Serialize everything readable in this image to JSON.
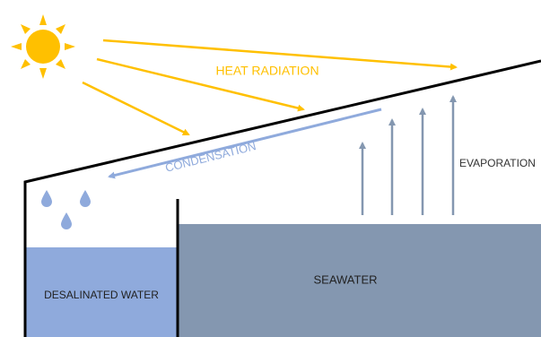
{
  "labels": {
    "heat_radiation": "HEAT RADIATION",
    "condensation": "CONDENSATION",
    "evaporation": "EVAPORATION",
    "desalinated_water": "DESALINATED WATER",
    "seawater": "SEAWATER"
  }
}
